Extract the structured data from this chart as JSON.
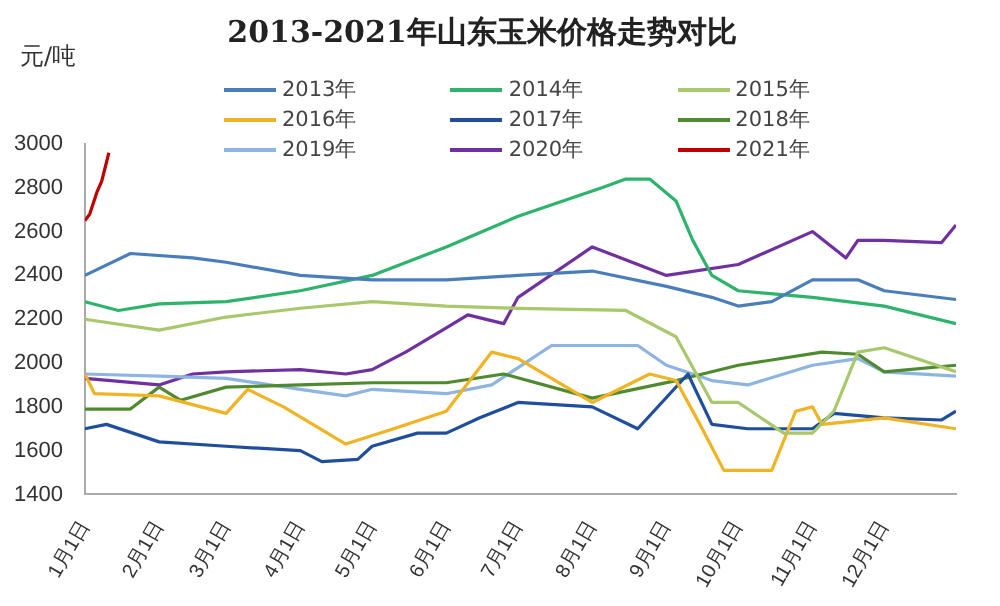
{
  "chart_data": {
    "type": "line",
    "title": "2013-2021年山东玉米价格走势对比",
    "annotations": [
      "元/吨"
    ],
    "ylim": [
      1400,
      3000
    ],
    "yticks": [
      1400,
      1600,
      1800,
      2000,
      2200,
      2400,
      2600,
      2800,
      3000
    ],
    "xlim": [
      "--01-01",
      "--12-31"
    ],
    "xticks": [
      {
        "value": "--01-01",
        "label": "1月1日"
      },
      {
        "value": "--02-01",
        "label": "2月1日"
      },
      {
        "value": "--03-01",
        "label": "3月1日"
      },
      {
        "value": "--04-01",
        "label": "4月1日"
      },
      {
        "value": "--05-01",
        "label": "5月1日"
      },
      {
        "value": "--06-01",
        "label": "6月1日"
      },
      {
        "value": "--07-01",
        "label": "7月1日"
      },
      {
        "value": "--08-01",
        "label": "8月1日"
      },
      {
        "value": "--09-01",
        "label": "9月1日"
      },
      {
        "value": "--10-01",
        "label": "10月1日"
      },
      {
        "value": "--11-01",
        "label": "11月1日"
      },
      {
        "value": "--12-01",
        "label": "12月1日"
      }
    ],
    "grid": false,
    "legend": "top",
    "marker": "none",
    "series": [
      {
        "name": "2013年",
        "color": "#4a7ebb",
        "x": [
          "--01-01",
          "--01-20",
          "--02-15",
          "--03-01",
          "--04-01",
          "--05-01",
          "--06-01",
          "--07-01",
          "--08-01",
          "--09-01",
          "--09-20",
          "--10-01",
          "--10-15",
          "--11-01",
          "--11-20",
          "--12-01",
          "--12-31"
        ],
        "values": [
          2400,
          2500,
          2480,
          2460,
          2400,
          2380,
          2380,
          2400,
          2420,
          2350,
          2300,
          2260,
          2280,
          2380,
          2380,
          2330,
          2290
        ]
      },
      {
        "name": "2014年",
        "color": "#2db36b",
        "x": [
          "--01-01",
          "--01-15",
          "--02-01",
          "--03-01",
          "--04-01",
          "--05-01",
          "--06-01",
          "--07-01",
          "--08-05",
          "--08-15",
          "--08-25",
          "--09-05",
          "--09-12",
          "--09-20",
          "--10-01",
          "--11-01",
          "--12-01",
          "--12-31"
        ],
        "values": [
          2280,
          2240,
          2270,
          2280,
          2330,
          2400,
          2530,
          2670,
          2800,
          2840,
          2840,
          2740,
          2560,
          2400,
          2330,
          2300,
          2260,
          2180
        ]
      },
      {
        "name": "2015年",
        "color": "#a9c76b",
        "x": [
          "--01-01",
          "--02-01",
          "--03-01",
          "--04-01",
          "--05-01",
          "--06-01",
          "--07-01",
          "--08-15",
          "--09-05",
          "--09-20",
          "--10-01",
          "--10-20",
          "--11-01",
          "--11-10",
          "--11-20",
          "--12-01",
          "--12-31"
        ],
        "values": [
          2200,
          2150,
          2210,
          2250,
          2280,
          2260,
          2250,
          2240,
          2120,
          1820,
          1820,
          1680,
          1680,
          1780,
          2050,
          2070,
          1960
        ]
      },
      {
        "name": "2016年",
        "color": "#f0b323",
        "x": [
          "--01-01",
          "--01-05",
          "--02-01",
          "--03-01",
          "--03-10",
          "--03-25",
          "--04-20",
          "--05-10",
          "--06-01",
          "--06-20",
          "--07-01",
          "--08-01",
          "--08-25",
          "--09-05",
          "--09-15",
          "--09-25",
          "--10-15",
          "--10-25",
          "--11-01",
          "--11-05",
          "--12-01",
          "--12-31"
        ],
        "values": [
          1950,
          1860,
          1850,
          1770,
          1880,
          1800,
          1630,
          1700,
          1780,
          2050,
          2020,
          1820,
          1950,
          1920,
          1720,
          1510,
          1510,
          1780,
          1800,
          1720,
          1750,
          1700
        ]
      },
      {
        "name": "2017年",
        "color": "#1f4e9c",
        "x": [
          "--01-01",
          "--01-10",
          "--02-01",
          "--03-01",
          "--04-01",
          "--04-10",
          "--04-25",
          "--05-01",
          "--05-20",
          "--06-01",
          "--06-15",
          "--07-01",
          "--08-01",
          "--08-20",
          "--09-10",
          "--09-20",
          "--10-05",
          "--11-01",
          "--11-10",
          "--12-01",
          "--12-25",
          "--12-31"
        ],
        "values": [
          1700,
          1720,
          1640,
          1620,
          1600,
          1550,
          1560,
          1620,
          1680,
          1680,
          1750,
          1820,
          1800,
          1700,
          1950,
          1720,
          1700,
          1700,
          1770,
          1750,
          1740,
          1780
        ]
      },
      {
        "name": "2018年",
        "color": "#4f8a2e",
        "x": [
          "--01-01",
          "--01-20",
          "--02-01",
          "--02-10",
          "--03-01",
          "--04-01",
          "--05-01",
          "--06-01",
          "--06-25",
          "--08-01",
          "--09-05",
          "--10-01",
          "--11-05",
          "--11-20",
          "--12-01",
          "--12-31"
        ],
        "values": [
          1790,
          1790,
          1890,
          1830,
          1890,
          1900,
          1910,
          1910,
          1950,
          1840,
          1920,
          1990,
          2050,
          2040,
          1960,
          1990
        ]
      },
      {
        "name": "2019年",
        "color": "#8db4e2",
        "x": [
          "--01-01",
          "--02-01",
          "--03-01",
          "--04-01",
          "--04-20",
          "--05-01",
          "--06-01",
          "--06-20",
          "--07-15",
          "--08-20",
          "--09-01",
          "--09-20",
          "--10-05",
          "--11-01",
          "--11-20",
          "--12-01",
          "--12-31"
        ],
        "values": [
          1950,
          1940,
          1930,
          1880,
          1850,
          1880,
          1860,
          1900,
          2080,
          2080,
          1990,
          1920,
          1900,
          1990,
          2020,
          1960,
          1940
        ]
      },
      {
        "name": "2020年",
        "color": "#7030a0",
        "x": [
          "--01-01",
          "--02-01",
          "--02-15",
          "--03-01",
          "--04-01",
          "--04-20",
          "--05-01",
          "--05-15",
          "--06-01",
          "--06-10",
          "--06-25",
          "--07-01",
          "--08-01",
          "--09-01",
          "--10-01",
          "--11-01",
          "--11-15",
          "--11-20",
          "--12-01",
          "--12-25",
          "--12-31"
        ],
        "values": [
          1930,
          1900,
          1950,
          1960,
          1970,
          1950,
          1970,
          2050,
          2160,
          2220,
          2180,
          2300,
          2530,
          2400,
          2450,
          2600,
          2480,
          2560,
          2560,
          2550,
          2630
        ]
      },
      {
        "name": "2021年",
        "color": "#c00000",
        "x": [
          "--01-01",
          "--01-03",
          "--01-06",
          "--01-08",
          "--01-11"
        ],
        "values": [
          2650,
          2680,
          2780,
          2830,
          2960
        ]
      }
    ]
  }
}
